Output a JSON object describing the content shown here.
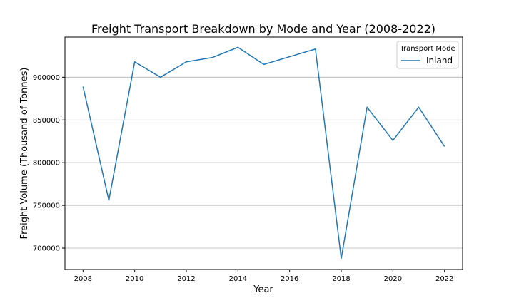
{
  "chart_data": {
    "type": "line",
    "title": "Freight Transport Breakdown by Mode and Year (2008-2022)",
    "xlabel": "Year",
    "ylabel": "Freight Volume (Thousand of Tonnes)",
    "x": [
      2008,
      2009,
      2010,
      2011,
      2012,
      2013,
      2014,
      2015,
      2016,
      2017,
      2018,
      2019,
      2020,
      2021,
      2022
    ],
    "series": [
      {
        "name": "Inland",
        "color": "#1f77b4",
        "values": [
          889000,
          756000,
          918000,
          900000,
          918000,
          923000,
          935000,
          915000,
          924000,
          933000,
          688000,
          865000,
          826000,
          865000,
          819000
        ]
      }
    ],
    "xlim": [
      2007.3,
      2022.7
    ],
    "ylim": [
      675000,
      947000
    ],
    "xticks": [
      2008,
      2010,
      2012,
      2014,
      2016,
      2018,
      2020,
      2022
    ],
    "xtick_labels": [
      "2008",
      "2010",
      "2012",
      "2014",
      "2016",
      "2018",
      "2020",
      "2022"
    ],
    "yticks": [
      700000,
      750000,
      800000,
      850000,
      900000
    ],
    "ytick_labels": [
      "700000",
      "750000",
      "800000",
      "850000",
      "900000"
    ],
    "grid": "horizontal",
    "legend": {
      "title": "Transport Mode",
      "position": "top-right"
    }
  }
}
